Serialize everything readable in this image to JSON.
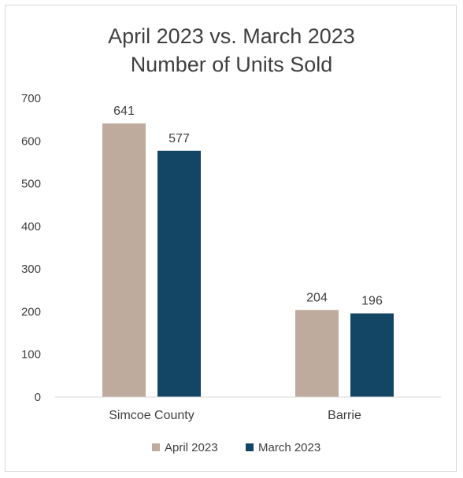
{
  "chart_data": {
    "type": "bar",
    "title": [
      "April 2023 vs. March 2023",
      "Number of Units Sold"
    ],
    "categories": [
      "Simcoe County",
      "Barrie"
    ],
    "series": [
      {
        "name": "April 2023",
        "values": [
          641,
          204
        ],
        "color": "#bfab9e"
      },
      {
        "name": "March 2023",
        "values": [
          577,
          196
        ],
        "color": "#134664"
      }
    ],
    "ylim": [
      0,
      700
    ],
    "yticks": [
      0,
      100,
      200,
      300,
      400,
      500,
      600,
      700
    ],
    "grid": false,
    "legend": "bottom"
  }
}
